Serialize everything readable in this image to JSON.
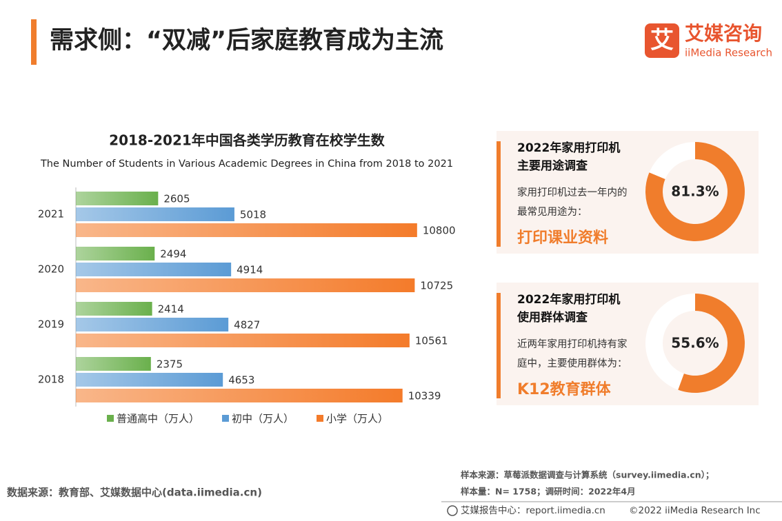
{
  "header": {
    "title": "需求侧：“双减”后家庭教育成为主流"
  },
  "logo": {
    "mark": "艾",
    "name": "艾媒咨询",
    "sub": "iiMedia Research"
  },
  "chart_data": [
    {
      "type": "hbar",
      "title": "2018-2021年中国各类学历教育在校学生数",
      "subtitle": "The Number of Students in Various Academic Degrees in China from 2018 to 2021",
      "categories": [
        "2021",
        "2020",
        "2019",
        "2018"
      ],
      "series": [
        {
          "name": "普通高中（万人）",
          "color": "#6ab04c",
          "values": [
            2605,
            2494,
            2414,
            2375
          ]
        },
        {
          "name": "初中（万人）",
          "color": "#5b9bd5",
          "values": [
            5018,
            4914,
            4827,
            4653
          ]
        },
        {
          "name": "小学（万人）",
          "color": "#f47b2a",
          "values": [
            10800,
            10725,
            10561,
            10339
          ]
        }
      ],
      "xlim": [
        0,
        11000
      ]
    },
    {
      "type": "donut",
      "title": [
        "2022年家用打印机",
        "主要用途调查"
      ],
      "description": [
        "家用打印机过去一年内的",
        "最常见用途为："
      ],
      "highlight": "打印课业资料",
      "values": [
        81.3,
        18.7
      ],
      "colors": [
        "#f07d2c",
        "#ffffff"
      ],
      "value_label": "81.3%"
    },
    {
      "type": "donut",
      "title": [
        "2022年家用打印机",
        "使用群体调查"
      ],
      "description": [
        "近两年家用打印机持有家",
        "庭中，主要使用群体为："
      ],
      "highlight": "K12教育群体",
      "values": [
        55.6,
        44.4
      ],
      "colors": [
        "#f07d2c",
        "#ffffff"
      ],
      "value_label": "55.6%"
    }
  ],
  "footer": {
    "source": "数据来源：教育部、艾媒数据中心(data.iimedia.cn)",
    "sample_source": "样本来源：草莓派数据调查与计算系统（survey.iimedia.cn）；",
    "sample_size": "样本量：N= 1758；调研时间：2022年4月",
    "center": "艾媒报告中心：report.iimedia.cn",
    "copyright": "©2022  iiMedia Research  Inc"
  }
}
